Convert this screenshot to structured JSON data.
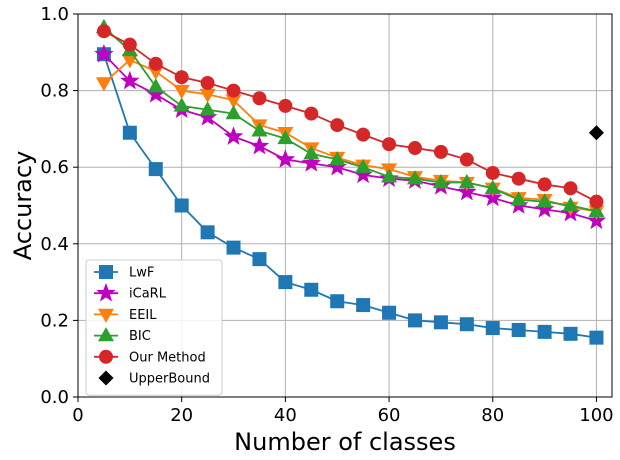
{
  "chart_data": {
    "type": "line",
    "title": "",
    "xlabel": "Number of classes",
    "ylabel": "Accuracy",
    "xlim": [
      0,
      103
    ],
    "ylim": [
      0.0,
      1.0
    ],
    "xticks": [
      0,
      20,
      40,
      60,
      80,
      100
    ],
    "xtick_labels": [
      "0",
      "20",
      "40",
      "60",
      "80",
      "100"
    ],
    "yticks": [
      0.0,
      0.2,
      0.4,
      0.6,
      0.8,
      1.0
    ],
    "ytick_labels": [
      "0.0",
      "0.2",
      "0.4",
      "0.6",
      "0.8",
      "1.0"
    ],
    "grid": true,
    "legend_position": "lower-left",
    "x": [
      5,
      10,
      15,
      20,
      25,
      30,
      35,
      40,
      45,
      50,
      55,
      60,
      65,
      70,
      75,
      80,
      85,
      90,
      95,
      100
    ],
    "series": [
      {
        "name": "LwF",
        "color": "#1f77b4",
        "marker": "square",
        "values": [
          0.895,
          0.69,
          0.595,
          0.5,
          0.43,
          0.39,
          0.36,
          0.3,
          0.28,
          0.25,
          0.24,
          0.22,
          0.2,
          0.195,
          0.19,
          0.18,
          0.175,
          0.17,
          0.165,
          0.155
        ]
      },
      {
        "name": "iCaRL",
        "color": "#bf00bf",
        "marker": "star",
        "values": [
          0.895,
          0.825,
          0.79,
          0.75,
          0.73,
          0.68,
          0.655,
          0.62,
          0.61,
          0.6,
          0.58,
          0.57,
          0.565,
          0.55,
          0.535,
          0.52,
          0.5,
          0.49,
          0.48,
          0.46
        ]
      },
      {
        "name": "EEIL",
        "color": "#ff7f0e",
        "marker": "triangle-down",
        "values": [
          0.82,
          0.88,
          0.85,
          0.8,
          0.79,
          0.775,
          0.71,
          0.69,
          0.65,
          0.625,
          0.605,
          0.595,
          0.575,
          0.565,
          0.56,
          0.545,
          0.52,
          0.515,
          0.495,
          0.485
        ]
      },
      {
        "name": "BIC",
        "color": "#2ca02c",
        "marker": "triangle-up",
        "values": [
          0.965,
          0.905,
          0.81,
          0.76,
          0.75,
          0.74,
          0.695,
          0.675,
          0.635,
          0.62,
          0.6,
          0.575,
          0.57,
          0.56,
          0.56,
          0.545,
          0.515,
          0.51,
          0.5,
          0.485
        ]
      },
      {
        "name": "Our Method",
        "color": "#d62728",
        "marker": "circle",
        "values": [
          0.955,
          0.92,
          0.87,
          0.835,
          0.82,
          0.8,
          0.78,
          0.76,
          0.74,
          0.71,
          0.685,
          0.66,
          0.65,
          0.64,
          0.62,
          0.585,
          0.57,
          0.555,
          0.545,
          0.51
        ]
      },
      {
        "name": "UpperBound",
        "color": "#000000",
        "marker": "diamond",
        "line": false,
        "x": [
          100
        ],
        "values": [
          0.69
        ]
      }
    ]
  }
}
